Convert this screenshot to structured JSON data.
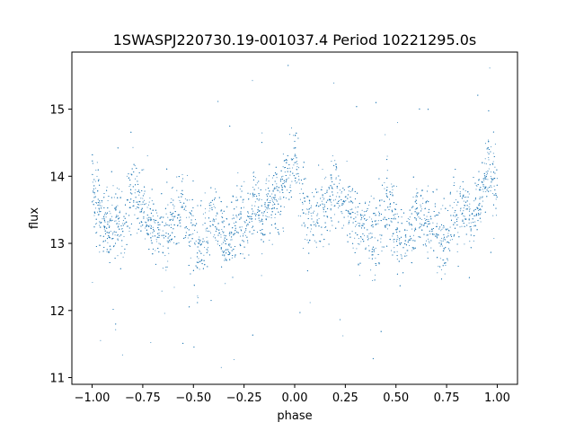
{
  "chart_data": {
    "type": "scatter",
    "title": "1SWASPJ220730.19-001037.4 Period 10221295.0s",
    "xlabel": "phase",
    "ylabel": "flux",
    "xlim": [
      -1.1,
      1.1
    ],
    "ylim": [
      10.9,
      15.85
    ],
    "x_ticks": [
      -1.0,
      -0.75,
      -0.5,
      -0.25,
      0.0,
      0.25,
      0.5,
      0.75,
      1.0
    ],
    "x_tick_labels": [
      "−1.00",
      "−0.75",
      "−0.50",
      "−0.25",
      "0.00",
      "0.25",
      "0.50",
      "0.75",
      "1.00"
    ],
    "y_ticks": [
      11,
      12,
      13,
      14,
      15
    ],
    "y_tick_labels": [
      "11",
      "12",
      "13",
      "14",
      "15"
    ],
    "marker_color": "#1f77b4",
    "grid": false,
    "legend": "none",
    "series": [
      {
        "x": [
          -1.0,
          -0.96,
          -0.92,
          -0.88,
          -0.84,
          -0.8,
          -0.76,
          -0.72,
          -0.68,
          -0.64,
          -0.6,
          -0.56,
          -0.52,
          -0.48,
          -0.44,
          -0.4,
          -0.36,
          -0.32,
          -0.28,
          -0.24,
          -0.2,
          -0.16,
          -0.12,
          -0.08,
          -0.04,
          0.0,
          0.04,
          0.08,
          0.12,
          0.16,
          0.2,
          0.24,
          0.28,
          0.32,
          0.36,
          0.4,
          0.44,
          0.48,
          0.52,
          0.56,
          0.6,
          0.64,
          0.68,
          0.72,
          0.76,
          0.8,
          0.84,
          0.88,
          0.92,
          0.96,
          1.0
        ],
        "y": [
          13.9,
          13.4,
          13.2,
          13.4,
          13.2,
          13.9,
          13.5,
          13.3,
          13.2,
          13.1,
          13.4,
          13.6,
          13.3,
          12.9,
          13.1,
          13.5,
          13.1,
          13.0,
          13.4,
          13.3,
          13.6,
          13.4,
          13.6,
          13.7,
          13.9,
          14.3,
          13.7,
          13.3,
          13.4,
          13.5,
          13.9,
          13.7,
          13.5,
          13.2,
          13.3,
          13.0,
          13.7,
          13.5,
          13.0,
          13.1,
          13.5,
          13.4,
          13.2,
          13.0,
          13.1,
          13.6,
          13.5,
          13.4,
          13.7,
          14.2,
          13.8
        ],
        "spread": [
          0.3,
          0.35,
          0.3,
          0.3,
          0.35,
          0.4,
          0.3,
          0.3,
          0.3,
          0.3,
          0.3,
          0.35,
          0.4,
          0.4,
          0.3,
          0.3,
          0.35,
          0.35,
          0.35,
          0.3,
          0.35,
          0.3,
          0.3,
          0.3,
          0.3,
          0.3,
          0.35,
          0.35,
          0.3,
          0.3,
          0.4,
          0.3,
          0.3,
          0.3,
          0.3,
          0.4,
          0.4,
          0.35,
          0.4,
          0.3,
          0.3,
          0.3,
          0.35,
          0.35,
          0.3,
          0.4,
          0.3,
          0.3,
          0.3,
          0.35,
          0.35
        ]
      }
    ]
  }
}
